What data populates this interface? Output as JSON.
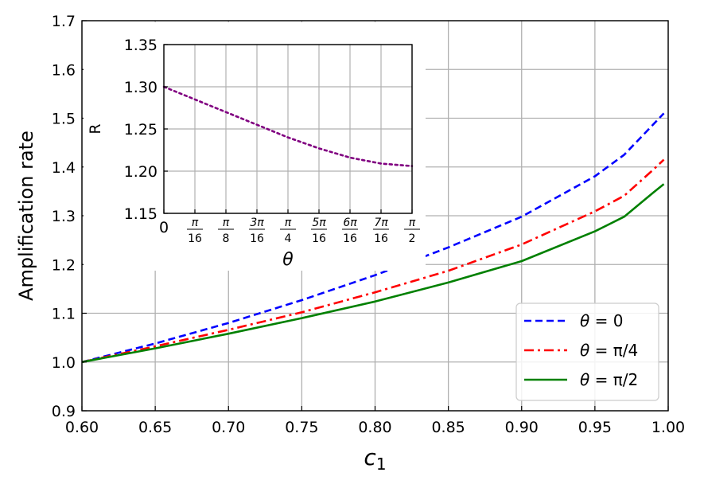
{
  "chart_data": [
    {
      "type": "line",
      "ylabel": "Amplification rate",
      "xlabel": {
        "base": "c",
        "sub": "1"
      },
      "xlim": [
        0.6,
        1.0
      ],
      "ylim": [
        0.9,
        1.7
      ],
      "grid": true,
      "legend_position": "bottom-right",
      "x_ticks": [
        "0.60",
        "0.65",
        "0.70",
        "0.75",
        "0.80",
        "0.85",
        "0.90",
        "0.95",
        "1.00"
      ],
      "y_ticks": [
        "0.9",
        "1.0",
        "1.1",
        "1.2",
        "1.3",
        "1.4",
        "1.5",
        "1.6",
        "1.7"
      ],
      "x": [
        0.6,
        0.65,
        0.7,
        0.75,
        0.8,
        0.85,
        0.9,
        0.95,
        0.97,
        0.99,
        0.997
      ],
      "series": [
        {
          "name_parts": [
            "θ",
            " = 0"
          ],
          "color": "#0000ff",
          "style": "dashed",
          "values": [
            1.0,
            1.038,
            1.08,
            1.127,
            1.178,
            1.235,
            1.298,
            1.381,
            1.425,
            1.488,
            1.51
          ]
        },
        {
          "name_parts": [
            "θ",
            " = π/4"
          ],
          "color": "#ff0000",
          "style": "dashdot",
          "values": [
            1.0,
            1.032,
            1.066,
            1.102,
            1.143,
            1.187,
            1.241,
            1.309,
            1.341,
            1.395,
            1.415
          ]
        },
        {
          "name_parts": [
            "θ",
            " = π/2"
          ],
          "color": "#008000",
          "style": "solid",
          "values": [
            1.0,
            1.028,
            1.058,
            1.09,
            1.124,
            1.163,
            1.207,
            1.268,
            1.298,
            1.348,
            1.365
          ]
        }
      ]
    },
    {
      "type": "line",
      "ylabel": "R",
      "xlabel": "θ",
      "ylim": [
        1.15,
        1.35
      ],
      "xlim": [
        0,
        8
      ],
      "grid": true,
      "y_ticks": [
        "1.15",
        "1.20",
        "1.25",
        "1.30",
        "1.35"
      ],
      "x_ticks": [
        {
          "plain": "0"
        },
        {
          "num": "π",
          "den": "16"
        },
        {
          "num": "π",
          "den": "8"
        },
        {
          "num": "3π",
          "den": "16"
        },
        {
          "num": "π",
          "den": "4"
        },
        {
          "num": "5π",
          "den": "16"
        },
        {
          "num": "6π",
          "den": "16"
        },
        {
          "num": "7π",
          "den": "16"
        },
        {
          "num": "π",
          "den": "2"
        }
      ],
      "x": [
        0,
        1,
        2,
        3,
        4,
        5,
        6,
        7,
        8
      ],
      "series": [
        {
          "color": "#800080",
          "style": "dotted",
          "values": [
            1.3,
            1.285,
            1.27,
            1.255,
            1.24,
            1.227,
            1.216,
            1.209,
            1.206
          ]
        }
      ]
    }
  ]
}
